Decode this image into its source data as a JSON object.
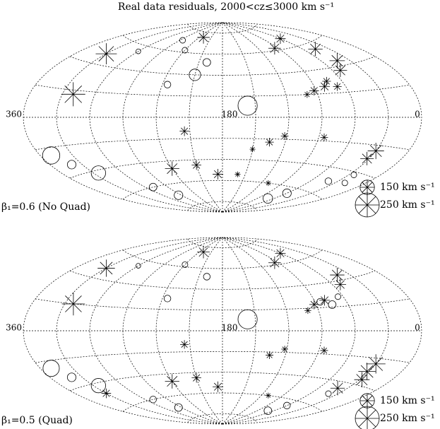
{
  "chart_data": [
    {
      "type": "aitoff-scatter",
      "title": "Real data residuals, 2000<cz≤3000 km s⁻¹",
      "label": "β₁=0.6 (No Quad)",
      "xlim": [
        360,
        0
      ],
      "ylim": [
        -90,
        90
      ],
      "xticks": [
        360,
        180,
        0
      ],
      "xgrid": [
        360,
        330,
        300,
        270,
        240,
        210,
        180,
        150,
        120,
        90,
        60,
        30,
        0
      ],
      "ygrid": [
        -80,
        -60,
        -40,
        -20,
        0,
        20,
        40,
        60,
        80
      ],
      "legend": [
        {
          "value": 150,
          "label": "150 km s⁻¹"
        },
        {
          "value": 250,
          "label": "250 km s⁻¹"
        }
      ],
      "series": [
        {
          "marker": "circle",
          "x": [
            157,
            350,
            340,
            325,
            290,
            275,
            40,
            25,
            60,
            240,
            200,
            210,
            235,
            70,
            20,
            300,
            265
          ],
          "y": [
            11,
            -25,
            -33,
            -42,
            -60,
            -70,
            -50,
            -42,
            -65,
            62,
            52,
            40,
            30,
            -72,
            -48,
            55,
            70
          ],
          "sizes": [
            200,
            180,
            90,
            150,
            80,
            90,
            70,
            60,
            90,
            60,
            80,
            120,
            70,
            100,
            60,
            50,
            60
          ]
        },
        {
          "marker": "asterisk",
          "x": [
            320,
            330,
            92,
            80,
            68,
            52,
            43,
            45,
            95,
            60,
            135,
            122,
            150,
            215,
            240,
            210,
            186,
            160,
            85,
            30,
            32,
            100,
            75,
            230,
            110
          ],
          "y": [
            17,
            48,
            23,
            26,
            25,
            37,
            44,
            55,
            62,
            68,
            -23,
            -17,
            -30,
            -13,
            -47,
            -45,
            -54,
            -54,
            -17,
            -24,
            -30,
            20,
            30,
            75,
            -60
          ],
          "sizes": [
            250,
            220,
            100,
            110,
            90,
            140,
            160,
            150,
            130,
            110,
            90,
            80,
            60,
            100,
            150,
            100,
            110,
            60,
            80,
            170,
            140,
            70,
            90,
            130,
            60
          ]
        }
      ]
    },
    {
      "type": "aitoff-scatter",
      "label": "β₁=0.5 (Quad)",
      "xlim": [
        360,
        0
      ],
      "ylim": [
        -90,
        90
      ],
      "xticks": [
        360,
        180,
        0
      ],
      "xgrid": [
        360,
        330,
        300,
        270,
        240,
        210,
        180,
        150,
        120,
        90,
        60,
        30,
        0
      ],
      "ygrid": [
        -80,
        -60,
        -40,
        -20,
        0,
        20,
        40,
        60,
        80
      ],
      "legend": [
        {
          "value": 150,
          "label": "150 km s⁻¹"
        },
        {
          "value": 250,
          "label": "250 km s⁻¹"
        }
      ],
      "series": [
        {
          "marker": "circle",
          "x": [
            157,
            350,
            325,
            290,
            275,
            40,
            60,
            240,
            200,
            235,
            70,
            75,
            85,
            65,
            300,
            340
          ],
          "y": [
            11,
            -25,
            -42,
            -60,
            -70,
            -50,
            -65,
            62,
            52,
            30,
            -72,
            22,
            25,
            28,
            55,
            -33
          ],
          "sizes": [
            200,
            170,
            150,
            70,
            80,
            60,
            70,
            60,
            70,
            70,
            80,
            80,
            70,
            60,
            50,
            90
          ]
        },
        {
          "marker": "asterisk",
          "x": [
            322,
            330,
            92,
            80,
            52,
            43,
            95,
            60,
            135,
            122,
            215,
            240,
            210,
            186,
            85,
            30,
            32,
            28,
            40,
            230,
            110,
            330,
            100
          ],
          "y": [
            20,
            48,
            23,
            26,
            37,
            44,
            62,
            68,
            -23,
            -17,
            -13,
            -47,
            -45,
            -54,
            -17,
            -24,
            -30,
            -36,
            -45,
            75,
            -60,
            -48,
            18
          ],
          "sizes": [
            240,
            180,
            100,
            110,
            120,
            150,
            130,
            110,
            80,
            70,
            90,
            150,
            100,
            110,
            80,
            200,
            180,
            160,
            150,
            130,
            60,
            100,
            70
          ]
        }
      ]
    }
  ]
}
